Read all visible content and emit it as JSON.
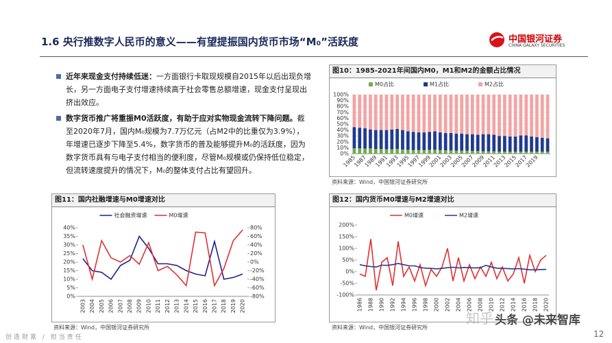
{
  "header": {
    "title": "1.6 央行推数字人民币的意义——有望提振国内货币市场“M₀”活跃度",
    "logo": "中国银河证券",
    "logo_en": "CHINA GALAXY SECURITIES"
  },
  "bullets": [
    {
      "bold": "近年来现金支付持续低迷：",
      "text": "一方面银行卡取现规模自2015年以后出现负增长，另一方面电子支付增速持续高于社会零售总额增速，现金支付呈现出挤出效应。"
    },
    {
      "bold": "数字货币推广将重振M0活跃度，有助于应对实物现金流转下降问题。",
      "text": "截至2020年7月，国内M₀规模为7.7万亿元（占M2中的比重仅为3.9%），年增速已逐步下降至5.4%，数字货币的普及能够提升M₀的活跃度，因为数字货币具有与电子支付相当的便利度，尽管M₀规模或仍保持低位稳定，但流转速度提升的情况下，M₀的整体支付占比有望回升。"
    }
  ],
  "chart_data": [
    {
      "type": "bar",
      "stacked": true,
      "title": "图10：1985-2021年间国内M0，M1和M2的金额占比情况",
      "source": "资料来源：Wind，中国银河证券研究所",
      "grid": true,
      "categories": [
        "1985",
        null,
        "1987",
        null,
        "1989",
        null,
        "1991",
        null,
        "1993",
        null,
        "1995",
        null,
        "1997",
        null,
        "1999",
        null,
        "2001",
        null,
        "2003",
        null,
        "2005",
        null,
        "2007",
        null,
        "2009",
        null,
        "2011",
        null,
        "2013",
        null,
        "2015",
        null,
        "2017",
        null,
        "2019",
        null,
        null
      ],
      "series": [
        {
          "name": "M0占比",
          "color": "#70ad47",
          "values": [
            9,
            9,
            8.5,
            9,
            8,
            8,
            7.5,
            7.5,
            8,
            7,
            6.5,
            6,
            6,
            6,
            6.5,
            6.5,
            6,
            5.5,
            5.5,
            5,
            5,
            5,
            4.5,
            4.5,
            4,
            4,
            4,
            3.5,
            3.5,
            3.5,
            3.5,
            3.5,
            3.5,
            3.5,
            3.5,
            3.5,
            3.5
          ]
        },
        {
          "name": "M1占比",
          "color": "#1f3a8f",
          "values": [
            36,
            35,
            34.5,
            32,
            32,
            32,
            32.5,
            33.5,
            34,
            33,
            31.5,
            31,
            30,
            30,
            30.5,
            31.5,
            30,
            29.5,
            29.5,
            29,
            29,
            28,
            28.5,
            27.5,
            29,
            29,
            28,
            26.5,
            26.5,
            25.5,
            25.5,
            27.5,
            27.5,
            25.5,
            24.5,
            23.5,
            22.5
          ]
        },
        {
          "name": "M2占比",
          "color": "#f4a3a3",
          "values": [
            55,
            56,
            57,
            59,
            60,
            60,
            60,
            59,
            58,
            60,
            62,
            63,
            64,
            64,
            63,
            62,
            64,
            65,
            65,
            66,
            66,
            67,
            67,
            68,
            67,
            67,
            68,
            70,
            70,
            71,
            71,
            69,
            69,
            71,
            72,
            73,
            74
          ]
        }
      ],
      "ylim": [
        0,
        100
      ],
      "yticks": [
        {
          "value": 0,
          "label": "0%"
        },
        {
          "value": 10,
          "label": "10%"
        },
        {
          "value": 20,
          "label": "20%"
        },
        {
          "value": 30,
          "label": "30%"
        },
        {
          "value": 40,
          "label": "40%"
        },
        {
          "value": 50,
          "label": "50%"
        },
        {
          "value": 60,
          "label": "60%"
        },
        {
          "value": 70,
          "label": "70%"
        },
        {
          "value": 80,
          "label": "80%"
        },
        {
          "value": 90,
          "label": "90%"
        },
        {
          "value": 100,
          "label": "100%"
        }
      ]
    },
    {
      "type": "line",
      "title": "图11：国内社融增速与M0增速对比",
      "source": "资料来源：Wind，中国银河证券研究所",
      "grid": false,
      "categories": [
        "2003",
        "2004",
        "2005",
        "2006",
        "2007",
        "2008",
        "2009",
        "2010",
        "2011",
        "2012",
        "2013",
        "2014",
        "2015",
        "2016",
        "2017",
        "2018",
        "2019",
        "2020"
      ],
      "series": [
        {
          "name": "社会融资增速",
          "color": "#1f1f8f",
          "values": [
            22,
            15,
            14,
            10,
            18,
            21,
            35,
            28,
            19,
            19,
            18,
            15,
            13,
            12,
            32,
            10,
            11,
            13
          ]
        },
        {
          "name": "M0增速",
          "color": "#e03030",
          "axis": "y2",
          "values": [
            40,
            -40,
            50,
            10,
            0,
            15,
            -5,
            45,
            -20,
            -10,
            -30,
            -55,
            70,
            68,
            -55,
            -15,
            50,
            75
          ]
        }
      ],
      "ylim": [
        0,
        40
      ],
      "yticks": [
        {
          "value": 0,
          "label": "0%"
        },
        {
          "value": 5,
          "label": "5%"
        },
        {
          "value": 10,
          "label": "10%"
        },
        {
          "value": 15,
          "label": "15%"
        },
        {
          "value": 20,
          "label": "20%"
        },
        {
          "value": 25,
          "label": "25%"
        },
        {
          "value": 30,
          "label": "30%"
        },
        {
          "value": 35,
          "label": "35%"
        },
        {
          "value": 40,
          "label": "40%"
        }
      ],
      "y2lim": [
        -80,
        80
      ],
      "y2ticks": [
        {
          "value": -80,
          "label": "-80%"
        },
        {
          "value": -60,
          "label": "-60%"
        },
        {
          "value": -40,
          "label": "-40%"
        },
        {
          "value": -20,
          "label": "-20%"
        },
        {
          "value": 0,
          "label": "0%"
        },
        {
          "value": 20,
          "label": "20%"
        },
        {
          "value": 40,
          "label": "40%"
        },
        {
          "value": 60,
          "label": "60%"
        },
        {
          "value": 80,
          "label": "80%"
        }
      ]
    },
    {
      "type": "line",
      "title": "图12：国内货币M0增速与M2增速对比",
      "source": "资料来源：Wind，中国银河证券研究所",
      "grid": false,
      "categories": [
        "1986",
        null,
        "1988",
        null,
        "1990",
        null,
        "1992",
        null,
        "1994",
        null,
        "1996",
        null,
        "1998",
        null,
        "2000",
        null,
        "2002",
        null,
        "2004",
        null,
        "2006",
        null,
        "2008",
        null,
        "2010",
        null,
        "2012",
        null,
        "2014",
        null,
        "2016",
        null,
        "2018",
        null,
        "2020"
      ],
      "series": [
        {
          "name": "M0增速",
          "color": "#e03030",
          "values": [
            -10,
            -20,
            140,
            -80,
            40,
            60,
            -60,
            130,
            -20,
            20,
            -40,
            30,
            -60,
            10,
            -20,
            20,
            100,
            -40,
            60,
            -40,
            30,
            -30,
            20,
            -20,
            40,
            -30,
            20,
            -40,
            -10,
            60,
            -50,
            70,
            0,
            50,
            70
          ]
        },
        {
          "name": "M2增速",
          "color": "#1f3a8f",
          "values": [
            30,
            25,
            22,
            20,
            28,
            27,
            30,
            35,
            30,
            25,
            25,
            18,
            15,
            14,
            12,
            14,
            17,
            19,
            16,
            18,
            17,
            16,
            17,
            27,
            20,
            15,
            14,
            13,
            12,
            13,
            11,
            8,
            8,
            9,
            10
          ]
        }
      ],
      "ylim": [
        -100,
        200
      ],
      "yticks": [
        {
          "value": -100,
          "label": "-100%"
        },
        {
          "value": -50,
          "label": "-50%"
        },
        {
          "value": 0,
          "label": "0%"
        },
        {
          "value": 50,
          "label": "50%"
        },
        {
          "value": 100,
          "label": "100%"
        },
        {
          "value": 150,
          "label": "150%"
        },
        {
          "value": 200,
          "label": "200%"
        }
      ]
    }
  ],
  "footer": {
    "slogan": "创造财富 / 担当责任",
    "page": "12",
    "watermark_1": "知乎",
    "watermark_2": "头条 @未来智库"
  }
}
